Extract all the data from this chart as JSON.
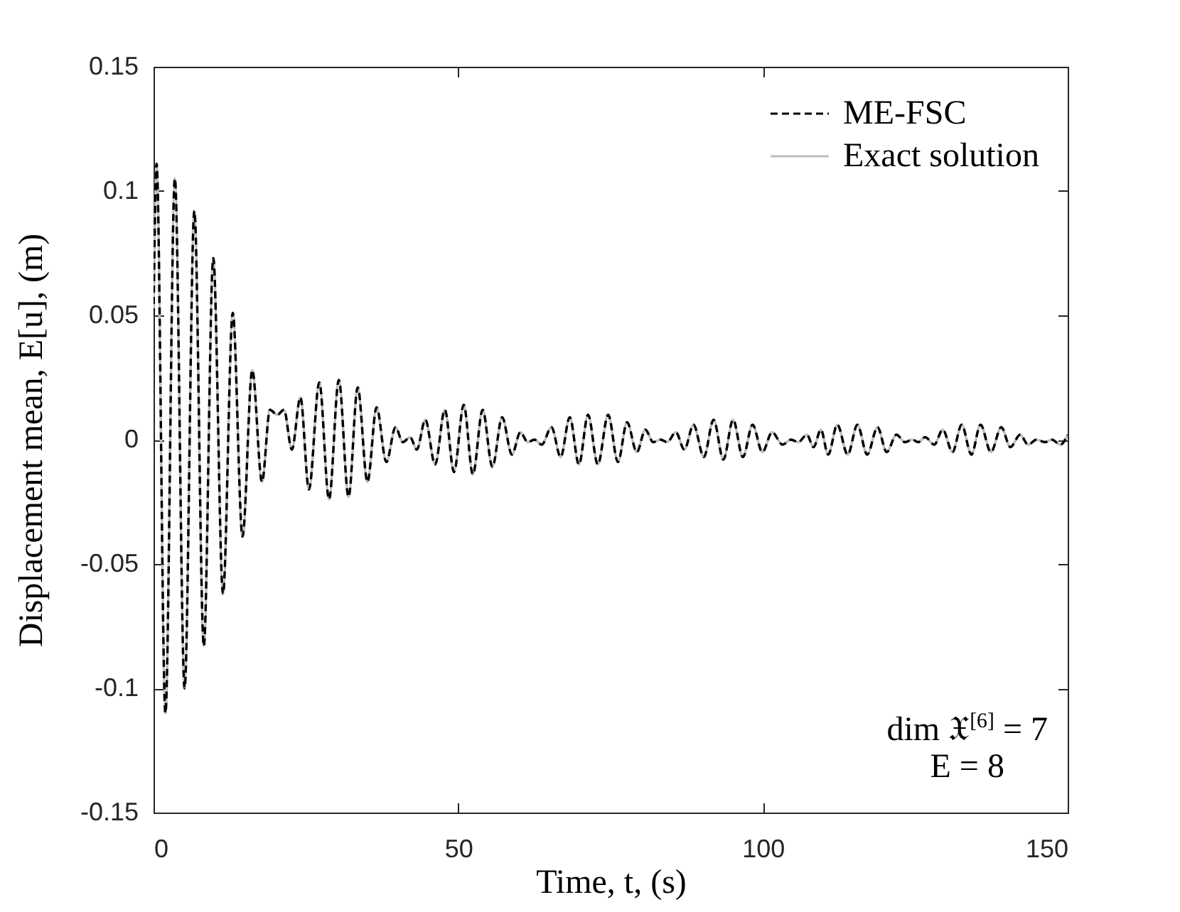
{
  "chart_data": {
    "type": "line",
    "xlabel": "Time, t, (s)",
    "ylabel": "Displacement mean, E[u], (m)",
    "annotations": [
      "dim 𝔛$^{[6]}$ = 7",
      "E = 8"
    ],
    "x": [
      0,
      0.5,
      1.95,
      3.5,
      5.1,
      6.7,
      8.25,
      9.8,
      11.4,
      13.0,
      14.6,
      16.2,
      17.8,
      19.1,
      20.3,
      21.4,
      22.7,
      24.1,
      25.5,
      27.2,
      28.8,
      30.4,
      32.0,
      33.5,
      35.1,
      36.6,
      38.2,
      39.7,
      40.9,
      42.1,
      43.2,
      44.6,
      46.2,
      47.8,
      49.3,
      50.9,
      52.4,
      54.0,
      55.6,
      57.2,
      58.8,
      60.2,
      61.4,
      62.5,
      63.7,
      65.3,
      66.8,
      68.3,
      69.8,
      71.3,
      72.9,
      74.6,
      76.2,
      77.7,
      79.3,
      80.7,
      82.0,
      83.2,
      84.3,
      85.7,
      87.1,
      88.6,
      90.3,
      91.9,
      93.5,
      95.1,
      96.7,
      98.3,
      99.9,
      101.5,
      103.2,
      104.6,
      105.8,
      107.2,
      108.3,
      109.5,
      110.7,
      112.2,
      113.9,
      115.5,
      117.1,
      118.8,
      120.3,
      121.9,
      123.3,
      124.5,
      125.5,
      126.6,
      128.1,
      129.5,
      131.1,
      132.6,
      134.2,
      135.7,
      137.4,
      139.1,
      140.6,
      142.2,
      143.5,
      144.9,
      146.3,
      147.4,
      148.8,
      150
    ],
    "series": [
      {
        "name": "ME-FSC",
        "color": "#000000",
        "line_style": "dashed",
        "values": [
          0.05,
          0.111,
          -0.11,
          0.105,
          -0.1,
          0.092,
          -0.083,
          0.073,
          -0.062,
          0.051,
          -0.039,
          0.028,
          -0.017,
          0.012,
          0.01,
          0.012,
          -0.004,
          0.017,
          -0.02,
          0.023,
          -0.024,
          0.024,
          -0.023,
          0.021,
          -0.017,
          0.013,
          -0.009,
          0.005,
          -0.001,
          0.001,
          -0.004,
          0.008,
          -0.01,
          0.012,
          -0.013,
          0.014,
          -0.014,
          0.012,
          -0.011,
          0.009,
          -0.006,
          0.003,
          -0.001,
          0,
          -0.002,
          0.005,
          -0.007,
          0.009,
          -0.01,
          0.01,
          -0.01,
          0.01,
          -0.009,
          0.007,
          -0.005,
          0.004,
          -0.001,
          0,
          -0.001,
          0.003,
          -0.004,
          0.006,
          -0.007,
          0.008,
          -0.008,
          0.008,
          -0.007,
          0.006,
          -0.005,
          0.003,
          -0.002,
          0,
          -0.001,
          0.002,
          -0.003,
          0.004,
          -0.006,
          0.006,
          -0.006,
          0.006,
          -0.006,
          0.005,
          -0.005,
          0.002,
          -0.001,
          0,
          -0.001,
          0.001,
          -0.002,
          0.004,
          -0.005,
          0.006,
          -0.006,
          0.006,
          -0.005,
          0.005,
          -0.003,
          0.002,
          -0.002,
          0,
          -0.001,
          0,
          -0.002,
          0.002
        ]
      },
      {
        "name": "Exact solution",
        "color": "#bdbdbd",
        "line_style": "solid",
        "values": [
          0.05,
          0.111,
          -0.11,
          0.105,
          -0.1,
          0.092,
          -0.083,
          0.073,
          -0.062,
          0.051,
          -0.039,
          0.028,
          -0.017,
          0.012,
          0.01,
          0.012,
          -0.004,
          0.017,
          -0.02,
          0.023,
          -0.024,
          0.024,
          -0.023,
          0.021,
          -0.017,
          0.013,
          -0.009,
          0.005,
          -0.001,
          0.001,
          -0.004,
          0.008,
          -0.01,
          0.012,
          -0.013,
          0.014,
          -0.014,
          0.012,
          -0.011,
          0.009,
          -0.006,
          0.003,
          -0.001,
          0,
          -0.002,
          0.005,
          -0.007,
          0.009,
          -0.01,
          0.01,
          -0.01,
          0.01,
          -0.009,
          0.007,
          -0.005,
          0.004,
          -0.001,
          0,
          -0.001,
          0.003,
          -0.004,
          0.006,
          -0.007,
          0.008,
          -0.008,
          0.008,
          -0.007,
          0.006,
          -0.005,
          0.003,
          -0.002,
          0,
          -0.001,
          0.002,
          -0.003,
          0.004,
          -0.006,
          0.006,
          -0.006,
          0.006,
          -0.006,
          0.005,
          -0.005,
          0.002,
          -0.001,
          0,
          -0.001,
          0.001,
          -0.002,
          0.004,
          -0.005,
          0.006,
          -0.006,
          0.006,
          -0.005,
          0.005,
          -0.003,
          0.002,
          -0.002,
          0,
          -0.001,
          0,
          -0.002,
          0.002
        ]
      }
    ],
    "xlim": [
      0,
      150
    ],
    "ylim": [
      -0.15,
      0.15
    ],
    "xticks": [
      0,
      50,
      100,
      150
    ],
    "yticks": [
      -0.15,
      -0.1,
      -0.05,
      0,
      0.05,
      0.1,
      0.15
    ],
    "grid": false,
    "legend": "top right"
  }
}
